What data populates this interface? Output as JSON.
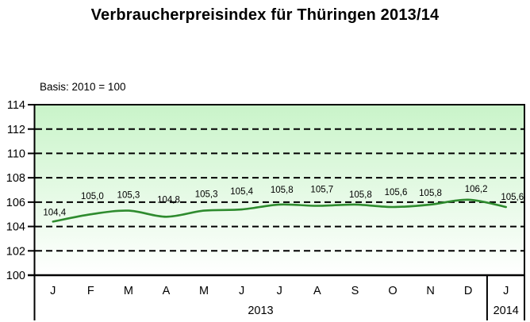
{
  "chart_data": {
    "type": "line",
    "title": "Verbraucherpreisindex für Thüringen 2013/14",
    "subtitle": "Basis: 2010 = 100",
    "categories": [
      "J",
      "F",
      "M",
      "A",
      "M",
      "J",
      "J",
      "A",
      "S",
      "O",
      "N",
      "D",
      "J"
    ],
    "year_groups": [
      {
        "label": "2013",
        "from": 0,
        "to": 11
      },
      {
        "label": "2014",
        "from": 12,
        "to": 12
      }
    ],
    "values": [
      104.4,
      105.0,
      105.3,
      104.8,
      105.3,
      105.4,
      105.8,
      105.7,
      105.8,
      105.6,
      105.8,
      106.2,
      105.6
    ],
    "value_labels": [
      "104,4",
      "105,0",
      "105,3",
      "104,8",
      "105,3",
      "105,4",
      "105,8",
      "105,7",
      "105,8",
      "105,6",
      "105,8",
      "106,2",
      "105,6"
    ],
    "y_ticks": [
      100,
      102,
      104,
      106,
      108,
      110,
      112,
      114
    ],
    "y_tick_labels": [
      "100",
      "102",
      "104",
      "106",
      "108",
      "110",
      "112",
      "114"
    ],
    "ylim": [
      100,
      114
    ],
    "grid": "horizontal-dashed",
    "legend_position": "none",
    "line_color": "#2e8b2e",
    "axis_color": "#000000",
    "plot_bg_top": "#c9f4c9",
    "plot_bg_bottom": "#ffffff"
  }
}
